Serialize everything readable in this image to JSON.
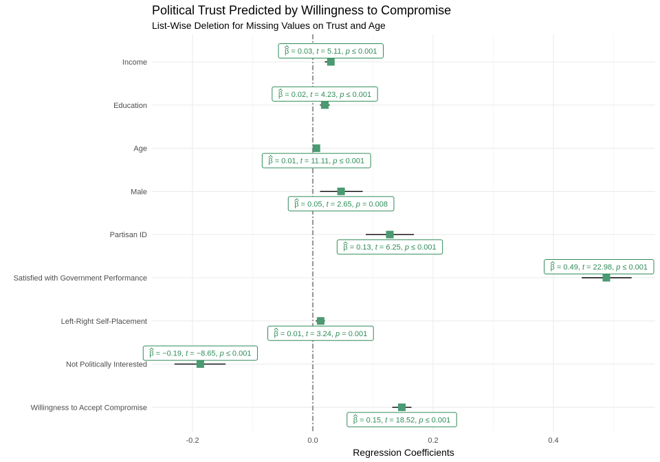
{
  "chart_data": {
    "type": "coefficient-plot",
    "title": "Political Trust Predicted by Willingness to Compromise",
    "subtitle": "List-Wise Deletion for Missing Values on Trust and Age",
    "xlabel": "Regression Coefficients",
    "xlim": [
      -0.26,
      0.57
    ],
    "xticks": [
      -0.2,
      0.0,
      0.2,
      0.4
    ],
    "xtick_labels": [
      "-0.2",
      "0.0",
      "0.2",
      "0.4"
    ],
    "reference_line": 0,
    "grid": true,
    "colors": {
      "point": "#4a9a72",
      "label": "#2e8b57",
      "ci": "#000000",
      "refline": "#999999"
    },
    "terms": [
      {
        "term": "Income",
        "estimate": 0.03,
        "ci": [
          0.02,
          0.036
        ],
        "stats": {
          "beta": "0.03",
          "t": "5.11",
          "p_op": "≤",
          "p": "0.001"
        },
        "label_side": "above"
      },
      {
        "term": "Education",
        "estimate": 0.02,
        "ci": [
          0.012,
          0.028
        ],
        "stats": {
          "beta": "0.02",
          "t": "4.23",
          "p_op": "≤",
          "p": "0.001"
        },
        "label_side": "above"
      },
      {
        "term": "Age",
        "estimate": 0.006,
        "ci": [
          0.005,
          0.007
        ],
        "stats": {
          "beta": "0.01",
          "t": "11.11",
          "p_op": "≤",
          "p": "0.001"
        },
        "label_side": "below"
      },
      {
        "term": "Male",
        "estimate": 0.047,
        "ci": [
          0.012,
          0.083
        ],
        "stats": {
          "beta": "0.05",
          "t": "2.65",
          "p_op": "=",
          "p": "0.008"
        },
        "label_side": "below"
      },
      {
        "term": "Partisan ID",
        "estimate": 0.128,
        "ci": [
          0.088,
          0.168
        ],
        "stats": {
          "beta": "0.13",
          "t": "6.25",
          "p_op": "≤",
          "p": "0.001"
        },
        "label_side": "below"
      },
      {
        "term": "Satisfied with Government Performance",
        "estimate": 0.488,
        "ci": [
          0.447,
          0.53
        ],
        "stats": {
          "beta": "0.49",
          "t": "22.98",
          "p_op": "≤",
          "p": "0.001"
        },
        "label_side": "above"
      },
      {
        "term": "Left-Right Self-Placement",
        "estimate": 0.013,
        "ci": [
          0.005,
          0.02
        ],
        "stats": {
          "beta": "0.01",
          "t": "3.24",
          "p_op": "=",
          "p": "0.001"
        },
        "label_side": "below"
      },
      {
        "term": "Not Politically Interested",
        "estimate": -0.187,
        "ci": [
          -0.23,
          -0.145
        ],
        "stats": {
          "beta": "−0.19",
          "t": "−8.65",
          "p_op": "≤",
          "p": "0.001"
        },
        "label_side": "above"
      },
      {
        "term": "Willingness to Accept Compromise",
        "estimate": 0.148,
        "ci": [
          0.132,
          0.164
        ],
        "stats": {
          "beta": "0.15",
          "t": "18.52",
          "p_op": "≤",
          "p": "0.001"
        },
        "label_side": "below"
      }
    ]
  }
}
